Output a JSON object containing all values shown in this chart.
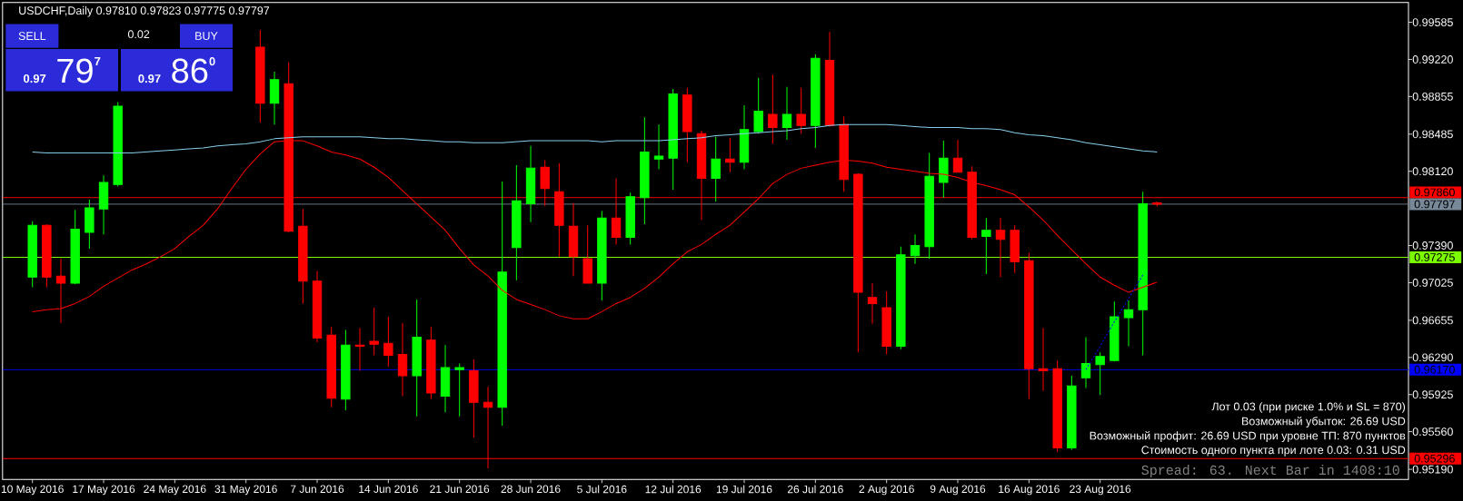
{
  "chart_data": {
    "type": "candlestick",
    "title": "USDCHF,Daily 0.97810 0.97823 0.97775 0.97797",
    "categories": [
      "10 May 2016",
      null,
      null,
      null,
      null,
      "17 May 2016",
      null,
      null,
      null,
      null,
      "24 May 2016",
      null,
      null,
      null,
      null,
      "31 May 2016",
      null,
      null,
      null,
      null,
      "7 Jun 2016",
      null,
      null,
      null,
      null,
      "14 Jun 2016",
      null,
      null,
      null,
      null,
      "21 Jun 2016",
      null,
      null,
      null,
      null,
      "28 Jun 2016",
      null,
      null,
      null,
      null,
      "5 Jul 2016",
      null,
      null,
      null,
      null,
      "12 Jul 2016",
      null,
      null,
      null,
      null,
      "19 Jul 2016",
      null,
      null,
      null,
      null,
      "26 Jul 2016",
      null,
      null,
      null,
      null,
      "2 Aug 2016",
      null,
      null,
      null,
      null,
      "9 Aug 2016",
      null,
      null,
      null,
      null,
      "16 Aug 2016",
      null,
      null,
      null,
      null,
      "23 Aug 2016",
      null,
      null,
      null,
      null
    ],
    "ohlc": [
      [
        0.9708,
        0.9763,
        0.9698,
        0.9759
      ],
      [
        0.9759,
        0.976,
        0.9698,
        0.9708
      ],
      [
        0.9709,
        0.9726,
        0.9663,
        0.9702
      ],
      [
        0.9702,
        0.9774,
        0.9701,
        0.9755
      ],
      [
        0.9752,
        0.9784,
        0.9736,
        0.9776
      ],
      [
        0.9775,
        0.9808,
        0.975,
        0.9801
      ],
      [
        0.9799,
        0.988,
        0.9797,
        0.9876
      ],
      null,
      null,
      null,
      null,
      null,
      null,
      null,
      null,
      null,
      [
        0.9934,
        0.9951,
        0.986,
        0.9879
      ],
      [
        0.9879,
        0.991,
        0.9858,
        0.9902
      ],
      [
        0.9898,
        0.9919,
        0.9752,
        0.9753
      ],
      [
        0.9758,
        0.9775,
        0.9682,
        0.9704
      ],
      [
        0.9704,
        0.9714,
        0.9644,
        0.9648
      ],
      [
        0.9651,
        0.9659,
        0.958,
        0.9589
      ],
      [
        0.9588,
        0.9656,
        0.9577,
        0.9641
      ],
      [
        0.9641,
        0.9658,
        0.9616,
        0.964
      ],
      [
        0.9645,
        0.9678,
        0.9631,
        0.9642
      ],
      [
        0.9643,
        0.9669,
        0.962,
        0.9631
      ],
      [
        0.9632,
        0.9663,
        0.9591,
        0.9611
      ],
      [
        0.9611,
        0.9686,
        0.9571,
        0.9649
      ],
      [
        0.9646,
        0.9659,
        0.9588,
        0.9594
      ],
      [
        0.9591,
        0.9641,
        0.9575,
        0.9619
      ],
      [
        0.9617,
        0.9623,
        0.9571,
        0.9619
      ],
      [
        0.9616,
        0.9627,
        0.955,
        0.9585
      ],
      [
        0.9585,
        0.96,
        0.952,
        0.958
      ],
      [
        0.958,
        0.9802,
        0.9562,
        0.9713
      ],
      [
        0.9737,
        0.9818,
        0.9705,
        0.9783
      ],
      [
        0.978,
        0.9837,
        0.9762,
        0.9815
      ],
      [
        0.9816,
        0.9823,
        0.9778,
        0.9795
      ],
      [
        0.9792,
        0.982,
        0.9728,
        0.9759
      ],
      [
        0.9758,
        0.9781,
        0.9709,
        0.9728
      ],
      [
        0.9726,
        0.9759,
        0.9702,
        0.9702
      ],
      [
        0.9702,
        0.9773,
        0.9685,
        0.9766
      ],
      [
        0.9766,
        0.9805,
        0.974,
        0.9747
      ],
      [
        0.9747,
        0.9791,
        0.974,
        0.9787
      ],
      [
        0.9786,
        0.9865,
        0.976,
        0.9831
      ],
      [
        0.9824,
        0.9858,
        0.9814,
        0.9827
      ],
      [
        0.9825,
        0.9893,
        0.9794,
        0.9888
      ],
      [
        0.9887,
        0.9894,
        0.9821,
        0.9851
      ],
      [
        0.9849,
        0.9852,
        0.9764,
        0.9805
      ],
      [
        0.9805,
        0.9846,
        0.9782,
        0.9824
      ],
      [
        0.9824,
        0.9845,
        0.9811,
        0.9821
      ],
      [
        0.9821,
        0.9877,
        0.9814,
        0.9853
      ],
      [
        0.9851,
        0.9904,
        0.9849,
        0.9871
      ],
      [
        0.9868,
        0.9907,
        0.9839,
        0.9855
      ],
      [
        0.9855,
        0.9895,
        0.9843,
        0.9868
      ],
      [
        0.9868,
        0.9894,
        0.9849,
        0.9857
      ],
      [
        0.9857,
        0.9927,
        0.9835,
        0.9923
      ],
      [
        0.9921,
        0.9949,
        0.9856,
        0.9857
      ],
      [
        0.9858,
        0.9866,
        0.9792,
        0.9804
      ],
      [
        0.9809,
        0.981,
        0.9634,
        0.9693
      ],
      [
        0.9688,
        0.9702,
        0.9662,
        0.9682
      ],
      [
        0.9678,
        0.9694,
        0.9632,
        0.964
      ],
      [
        0.964,
        0.9738,
        0.9637,
        0.973
      ],
      [
        0.9729,
        0.975,
        0.9721,
        0.9739
      ],
      [
        0.9738,
        0.983,
        0.9726,
        0.9807
      ],
      [
        0.9801,
        0.9842,
        0.9786,
        0.9825
      ],
      [
        0.9825,
        0.9843,
        0.9811,
        0.9811
      ],
      [
        0.9811,
        0.9817,
        0.9745,
        0.9747
      ],
      [
        0.9748,
        0.9766,
        0.9711,
        0.9754
      ],
      [
        0.9754,
        0.9766,
        0.9708,
        0.9745
      ],
      [
        0.9754,
        0.9759,
        0.9712,
        0.9723
      ],
      [
        0.9724,
        0.9732,
        0.9588,
        0.9618
      ],
      [
        0.9618,
        0.9658,
        0.9596,
        0.9616
      ],
      [
        0.9618,
        0.9626,
        0.9536,
        0.954
      ],
      [
        0.954,
        0.9611,
        0.9538,
        0.9601
      ],
      [
        0.9609,
        0.9649,
        0.9599,
        0.9623
      ],
      [
        0.9622,
        0.9634,
        0.9592,
        0.963
      ],
      [
        0.9626,
        0.9684,
        0.9625,
        0.9669
      ],
      [
        0.9668,
        0.9685,
        0.964,
        0.9676
      ],
      [
        0.9676,
        0.9792,
        0.9631,
        0.978
      ],
      [
        0.9781,
        0.97823,
        0.97775,
        0.97797
      ]
    ],
    "colors": [
      "#00ff00",
      "#ff0000",
      "#ff0000",
      "#00ff00",
      "#00ff00",
      "#00ff00",
      "#00ff00",
      null,
      null,
      null,
      null,
      null,
      null,
      null,
      null,
      null,
      "#ff0000",
      "#00ff00",
      "#ff0000",
      "#ff0000",
      "#ff0000",
      "#ff0000",
      "#00ff00",
      "#ff0000",
      "#ff0000",
      "#ff0000",
      "#ff0000",
      "#00ff00",
      "#ff0000",
      "#00ff00",
      "#00ff00",
      "#ff0000",
      "#ff0000",
      "#00ff00",
      "#00ff00",
      "#00ff00",
      "#ff0000",
      "#ff0000",
      "#ff0000",
      "#ff0000",
      "#00ff00",
      "#ff0000",
      "#00ff00",
      "#00ff00",
      "#00ff00",
      "#00ff00",
      "#ff0000",
      "#ff0000",
      "#00ff00",
      "#ff0000",
      "#00ff00",
      "#00ff00",
      "#ff0000",
      "#00ff00",
      "#ff0000",
      "#00ff00",
      "#ff0000",
      "#ff0000",
      "#ff0000",
      "#ff0000",
      "#ff0000",
      "#00ff00",
      "#00ff00",
      "#00ff00",
      "#00ff00",
      "#ff0000",
      "#ff0000",
      "#00ff00",
      "#ff0000",
      "#ff0000",
      "#ff0000",
      "#ff0000",
      "#ff0000",
      "#00ff00",
      "#00ff00",
      "#00ff00",
      "#00ff00",
      "#00ff00",
      "#00ff00",
      "#ff0000"
    ],
    "series": [
      {
        "type": "line",
        "color": "#87ceeb",
        "values": [
          0.9831,
          0.983,
          0.983,
          0.983,
          0.983,
          0.983,
          0.983,
          0.983,
          0.9831,
          0.9832,
          0.9833,
          0.9834,
          0.9835,
          0.9837,
          0.9838,
          0.9839,
          0.9841,
          0.9844,
          0.9845,
          0.9846,
          0.9846,
          0.9846,
          0.9846,
          0.9846,
          0.9845,
          0.9844,
          0.9844,
          0.9843,
          0.9842,
          0.9841,
          0.9841,
          0.984,
          0.984,
          0.984,
          0.9841,
          0.9842,
          0.9842,
          0.9842,
          0.9842,
          0.9842,
          0.9841,
          0.9842,
          0.9842,
          0.9842,
          0.9842,
          0.9843,
          0.9844,
          0.9845,
          0.9847,
          0.9848,
          0.9849,
          0.985,
          0.9851,
          0.9852,
          0.9854,
          0.9855,
          0.9857,
          0.9858,
          0.9858,
          0.9858,
          0.9858,
          0.9857,
          0.9856,
          0.9855,
          0.9855,
          0.9855,
          0.9854,
          0.9854,
          0.9853,
          0.985,
          0.9848,
          0.9847,
          0.9845,
          0.9843,
          0.984,
          0.9838,
          0.9836,
          0.9834,
          0.9832,
          0.9831
        ]
      },
      {
        "type": "line",
        "color": "#ff0000",
        "values": [
          0.9674,
          0.9676,
          0.9677,
          0.9682,
          0.9689,
          0.9699,
          0.9707,
          0.9715,
          0.9721,
          0.9728,
          0.9736,
          0.9748,
          0.9759,
          0.9775,
          0.9795,
          0.9814,
          0.9829,
          0.9841,
          0.9842,
          0.9842,
          0.9837,
          0.9831,
          0.9828,
          0.9824,
          0.9816,
          0.9806,
          0.9793,
          0.978,
          0.9767,
          0.9754,
          0.9736,
          0.972,
          0.9709,
          0.9695,
          0.9686,
          0.9681,
          0.9676,
          0.967,
          0.9667,
          0.9667,
          0.9674,
          0.9682,
          0.9688,
          0.9697,
          0.9708,
          0.9721,
          0.9733,
          0.974,
          0.975,
          0.9759,
          0.9772,
          0.9785,
          0.98,
          0.9809,
          0.9815,
          0.9818,
          0.9821,
          0.9823,
          0.9822,
          0.982,
          0.9816,
          0.9814,
          0.9812,
          0.981,
          0.9809,
          0.9806,
          0.9801,
          0.9798,
          0.9794,
          0.9789,
          0.9777,
          0.9764,
          0.9749,
          0.9735,
          0.9721,
          0.9708,
          0.97,
          0.9693,
          0.9698,
          0.9703
        ]
      },
      {
        "type": "line",
        "color": "#0000ff",
        "line_style": "dotted",
        "values": [
          null,
          null,
          null,
          null,
          null,
          null,
          null,
          null,
          null,
          null,
          null,
          null,
          null,
          null,
          null,
          null,
          null,
          null,
          null,
          null,
          null,
          null,
          null,
          null,
          null,
          null,
          null,
          null,
          null,
          null,
          null,
          null,
          null,
          null,
          null,
          null,
          null,
          null,
          null,
          null,
          null,
          null,
          null,
          null,
          null,
          null,
          null,
          null,
          null,
          null,
          null,
          null,
          null,
          null,
          null,
          null,
          null,
          null,
          null,
          null,
          null,
          null,
          null,
          null,
          null,
          null,
          null,
          null,
          null,
          null,
          null,
          null,
          null,
          null,
          0.9617,
          0.964,
          0.9664,
          0.9687,
          0.971,
          null
        ]
      }
    ],
    "ylim": [
      0.9509,
      0.9978
    ],
    "yticks": [
      0.99585,
      {
        "value": 0.9922,
        "label": "0.99220"
      },
      0.98855,
      0.98485,
      {
        "value": 0.9812,
        "label": "0.98120"
      },
      {
        "value": 0.9739,
        "label": "0.97390"
      },
      0.97025,
      0.96655,
      {
        "value": 0.9629,
        "label": "0.96290"
      },
      0.95925,
      {
        "value": 0.9556,
        "label": "0.95560"
      },
      {
        "value": 0.9519,
        "label": "0.95190"
      }
    ],
    "ref_lines": [
      {
        "axis": "y",
        "value": 0.9786,
        "label": "0.97860",
        "color": "#ff0000"
      },
      {
        "axis": "y",
        "value": 0.97797,
        "label": "0.97797",
        "color": "#778899"
      },
      {
        "axis": "y",
        "value": 0.97275,
        "label": "0.97275",
        "color": "#7cfc00"
      },
      {
        "axis": "y",
        "value": 0.9617,
        "label": "0.96170",
        "color": "#0000ff"
      },
      {
        "axis": "y",
        "value": 0.95296,
        "label": "0.95296",
        "color": "#ff0000"
      }
    ],
    "annotations": [
      "SELL",
      "0.02",
      "BUY",
      "**0.97** 79$^{7}$",
      "**0.97** 86$^{0}$",
      "Лот 0.03 (при риске 1.0% и SL = 870)",
      "Возможный убыток: 26.69 USD",
      "Возможный профит: 26.69 USD при уровне ТП: 870 пунктов",
      "Стоимость одного пункта при лоте 0.03: 0.31 USD",
      "Spread: 63. Next Bar in 1408:10"
    ]
  }
}
